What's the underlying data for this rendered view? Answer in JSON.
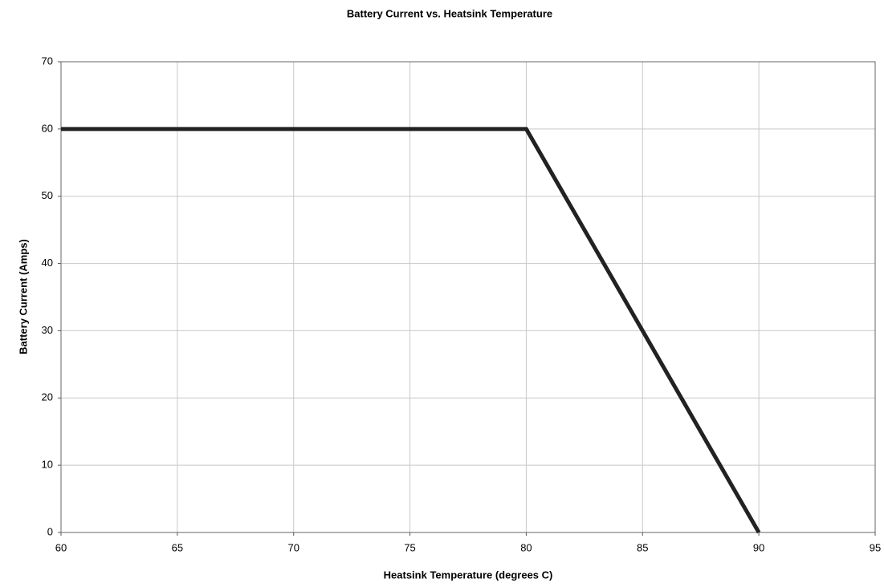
{
  "chart_data": {
    "type": "line",
    "title": "Battery Current vs. Heatsink Temperature",
    "x_label": "Heatsink Temperature (degrees C)",
    "y_label": "Battery Current (Amps)",
    "x": [
      60,
      80,
      90
    ],
    "values": [
      60,
      60,
      0
    ],
    "color": "#222222",
    "xlim": [
      60,
      95
    ],
    "xticks": [
      60,
      65,
      70,
      75,
      80,
      85,
      90,
      95
    ],
    "ylim": [
      0,
      70
    ],
    "yticks": [
      0,
      10,
      20,
      30,
      40,
      50,
      60,
      70
    ],
    "grid": true
  }
}
